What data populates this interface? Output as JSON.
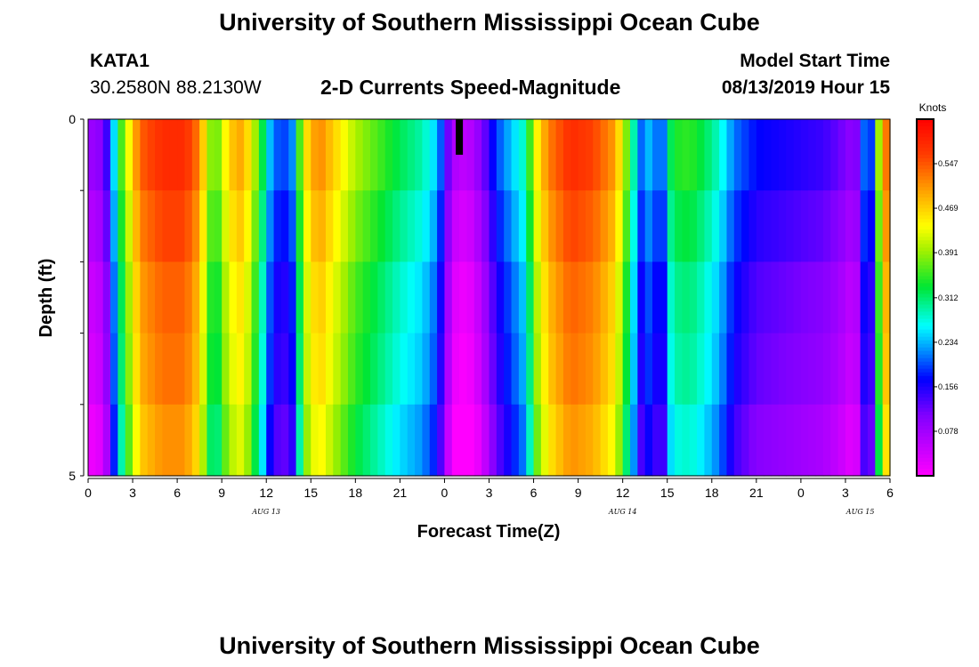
{
  "header": {
    "title": "University of Southern Mississippi Ocean Cube",
    "station_id": "KATA1",
    "coordinates": "30.2580N 88.2130W",
    "subtitle": "2-D Currents Speed-Magnitude",
    "model_start_label": "Model Start Time",
    "model_start_value": "08/13/2019 Hour 15"
  },
  "footer": {
    "title": "University of Southern Mississippi Ocean Cube"
  },
  "chart_data": {
    "type": "heatmap",
    "title": "2-D Currents Speed-Magnitude",
    "xlabel": "Forecast Time(Z)",
    "ylabel": "Depth (ft)",
    "ylim": [
      0,
      5
    ],
    "y_tick_labels": [
      "0",
      "5"
    ],
    "x_hours_range": [
      0,
      54
    ],
    "x_tick_labels": [
      "0",
      "3",
      "6",
      "9",
      "12",
      "15",
      "18",
      "21",
      "0",
      "3",
      "6",
      "9",
      "12",
      "15",
      "18",
      "21",
      "0",
      "3",
      "6"
    ],
    "date_labels": [
      {
        "text": "AUG 13",
        "hour": 12
      },
      {
        "text": "AUG 14",
        "hour": 36
      },
      {
        "text": "AUG 15",
        "hour": 52
      }
    ],
    "colorbar": {
      "unit": "Knots",
      "min": 0.0,
      "max": 0.625,
      "tick_labels": [
        "0.547",
        "0.469",
        "0.391",
        "0.312",
        "0.234",
        "0.156",
        "0.078"
      ],
      "tick_values": [
        0.547,
        0.469,
        0.391,
        0.312,
        0.234,
        0.156,
        0.078
      ]
    },
    "depth_layers": 5,
    "depth_modifiers": [
      0.02,
      0.0,
      -0.02,
      -0.03,
      -0.05
    ],
    "current_time_marker_hour": 25,
    "speed_profile": [
      [
        0.0,
        0.06
      ],
      [
        1.0,
        0.08
      ],
      [
        1.5,
        0.16
      ],
      [
        2.0,
        0.3
      ],
      [
        2.5,
        0.38
      ],
      [
        3.0,
        0.45
      ],
      [
        3.5,
        0.52
      ],
      [
        5.0,
        0.56
      ],
      [
        6.5,
        0.56
      ],
      [
        7.5,
        0.5
      ],
      [
        8.0,
        0.4
      ],
      [
        8.5,
        0.33
      ],
      [
        9.5,
        0.45
      ],
      [
        10.5,
        0.48
      ],
      [
        11.0,
        0.4
      ],
      [
        11.5,
        0.35
      ],
      [
        12.2,
        0.22
      ],
      [
        13.0,
        0.16
      ],
      [
        13.8,
        0.2
      ],
      [
        14.5,
        0.42
      ],
      [
        15.5,
        0.5
      ],
      [
        16.5,
        0.45
      ],
      [
        18.0,
        0.38
      ],
      [
        19.5,
        0.34
      ],
      [
        21.0,
        0.3
      ],
      [
        22.5,
        0.27
      ],
      [
        23.5,
        0.22
      ],
      [
        24.0,
        0.14
      ],
      [
        24.5,
        0.05
      ],
      [
        25.5,
        0.03
      ],
      [
        26.5,
        0.08
      ],
      [
        27.5,
        0.17
      ],
      [
        28.5,
        0.22
      ],
      [
        29.5,
        0.27
      ],
      [
        30.0,
        0.4
      ],
      [
        31.0,
        0.5
      ],
      [
        32.5,
        0.56
      ],
      [
        34.0,
        0.54
      ],
      [
        35.5,
        0.48
      ],
      [
        36.0,
        0.4
      ],
      [
        36.5,
        0.32
      ],
      [
        37.0,
        0.22
      ],
      [
        37.5,
        0.15
      ],
      [
        38.0,
        0.28
      ],
      [
        38.5,
        0.1
      ],
      [
        39.0,
        0.28
      ],
      [
        39.5,
        0.32
      ],
      [
        40.5,
        0.33
      ],
      [
        41.5,
        0.3
      ],
      [
        42.5,
        0.26
      ],
      [
        43.5,
        0.19
      ],
      [
        45.0,
        0.15
      ],
      [
        48.0,
        0.13
      ],
      [
        49.5,
        0.12
      ],
      [
        50.5,
        0.1
      ],
      [
        51.5,
        0.07
      ],
      [
        52.0,
        0.1
      ],
      [
        52.3,
        0.2
      ],
      [
        52.6,
        0.09
      ],
      [
        53.0,
        0.3
      ],
      [
        53.5,
        0.45
      ],
      [
        54.0,
        0.56
      ]
    ]
  }
}
